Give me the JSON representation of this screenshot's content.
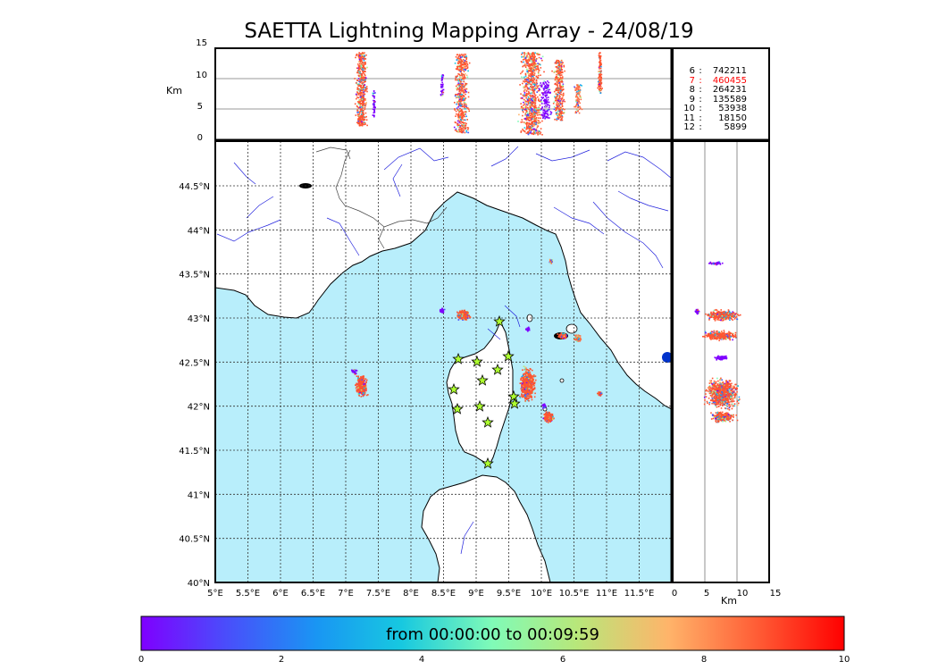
{
  "title": "SAETTA Lightning Mapping Array - 24/08/19",
  "top_panel": {
    "ylabel": "Km",
    "yticks": [
      "15",
      "10",
      "5",
      "0"
    ]
  },
  "side_panel": {
    "xlabel": "Km",
    "xticks": [
      "0",
      "5",
      "10",
      "15"
    ]
  },
  "stats": [
    {
      "k": "6",
      "v": "742211",
      "color": "#000000"
    },
    {
      "k": "7",
      "v": "460455",
      "color": "#ff0000"
    },
    {
      "k": "8",
      "v": "264231",
      "color": "#000000"
    },
    {
      "k": "9",
      "v": "135589",
      "color": "#000000"
    },
    {
      "k": "10",
      "v": "53938",
      "color": "#000000"
    },
    {
      "k": "11",
      "v": "18150",
      "color": "#000000"
    },
    {
      "k": "12",
      "v": "5899",
      "color": "#000000"
    }
  ],
  "map": {
    "lon_ticks": [
      "5°E",
      "5.5°E",
      "6°E",
      "6.5°E",
      "7°E",
      "7.5°E",
      "8°E",
      "8.5°E",
      "9°E",
      "9.5°E",
      "10°E",
      "10.5°E",
      "11°E",
      "11.5°E"
    ],
    "lat_ticks": [
      "40°N",
      "40.5°N",
      "41°N",
      "41.5°N",
      "42°N",
      "42.5°N",
      "43°N",
      "43.5°N",
      "44°N",
      "44.5°N"
    ],
    "sea_color": "#b8eefb",
    "land_color": "#ffffff",
    "river_color": "#2222dd"
  },
  "colorbar": {
    "label": "from 00:00:00 to 00:09:59",
    "ticks": [
      "0",
      "2",
      "4",
      "6",
      "8",
      "10"
    ]
  },
  "stations_count": 13
}
